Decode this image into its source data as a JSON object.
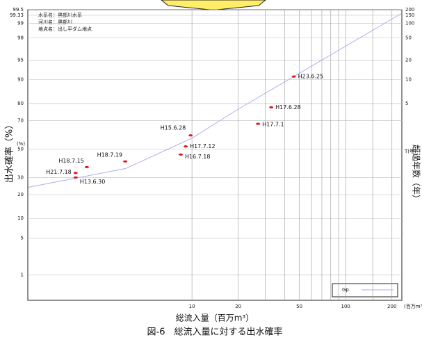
{
  "chart_data": {
    "type": "probability",
    "title": "図-6　総流入量に対する出水確率",
    "x_label": "総流入量（百万m³）",
    "x_unit": "(百万m³)",
    "y_label": "出水確率（%）",
    "y_unit": "(%)",
    "y2_label": "超過年数（年）",
    "y2_unit": "T(年)",
    "info": [
      "水系名：黒部川水系",
      "河川名：黒部川",
      "地点名：出し平ダム地点"
    ],
    "x_log": true,
    "xlim": [
      0.855,
      232
    ],
    "xticks": [
      10,
      20,
      50,
      100,
      200
    ],
    "x_minor_gridlines": [
      30,
      40,
      60,
      70,
      80,
      90,
      150
    ],
    "ylim": [
      0.26,
      99.5
    ],
    "yticks": [
      1,
      5,
      10,
      20,
      30,
      50,
      70,
      80,
      90,
      95,
      98,
      99,
      99.33,
      99.5
    ],
    "y2lim": [
      1.0026,
      200
    ],
    "y2ticks": [
      5,
      10,
      20,
      50,
      100,
      150,
      200
    ],
    "grid": true,
    "legend": "bottom-right",
    "series": [
      {
        "name": "Gp",
        "color": "#a9aef0",
        "x": [
          0.86,
          3.7,
          10,
          20,
          232
        ],
        "values": [
          24,
          36,
          58,
          77,
          99.4
        ]
      }
    ],
    "points": {
      "color": "#e8151b",
      "labels": [
        "H23.6.25",
        "H17.6.28",
        "H17.7.1",
        "H15.6.28",
        "H17.7.12",
        "H16.7.18",
        "H18.7.19",
        "H18.7.15",
        "H21.7.18",
        "H13.6.30"
      ],
      "x": [
        46,
        32.8,
        26.9,
        9.8,
        9.1,
        8.45,
        3.68,
        2.07,
        1.75,
        1.75
      ],
      "values": [
        91,
        78,
        68,
        60,
        52,
        46,
        41,
        37,
        33,
        30
      ]
    }
  }
}
